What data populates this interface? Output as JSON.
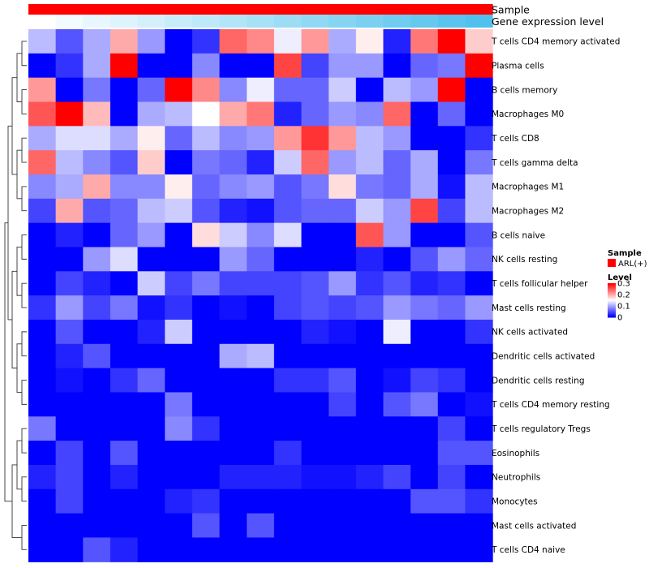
{
  "chart_data": {
    "type": "heatmap",
    "annotations": {
      "sample_label": "Sample",
      "gene_label": "Gene expression level",
      "sample_color": "#ff0000",
      "gene_colors": [
        "#ffffff",
        "#f2fbfe",
        "#e8f7fd",
        "#def4fc",
        "#d3f0fb",
        "#c8edfa",
        "#bde9f8",
        "#b2e5f7",
        "#a7e1f6",
        "#9cdcf5",
        "#91d8f4",
        "#86d4f2",
        "#7bd0f1",
        "#70ccf0",
        "#65c8ef",
        "#5ac4ee",
        "#50c1ed",
        "#4fc1ed"
      ]
    },
    "rows": [
      "T cells CD4 memory activated",
      "Plasma cells",
      "B cells memory",
      "Macrophages M0",
      "T cells CD8",
      "T cells gamma delta",
      "Macrophages M1",
      "Macrophages M2",
      "B cells naive",
      "NK cells resting",
      "T cells follicular helper",
      "Mast cells resting",
      "NK cells activated",
      "Dendritic cells activated",
      "Dendritic cells resting",
      "T cells CD4 memory resting",
      "T cells regulatory  Tregs",
      "Eosinophils",
      "Neutrophils",
      "Monocytes",
      "Mast cells activated",
      "T cells CD4 naive"
    ],
    "values": [
      [
        0.11,
        0.05,
        0.1,
        0.2,
        0.09,
        0.0,
        0.03,
        0.24,
        0.22,
        0.14,
        0.21,
        0.1,
        0.16,
        0.02,
        0.23,
        0.3,
        0.18
      ],
      [
        0.0,
        0.03,
        0.1,
        0.3,
        0.0,
        0.0,
        0.08,
        0.0,
        0.0,
        0.26,
        0.04,
        0.09,
        0.09,
        0.0,
        0.06,
        0.07,
        0.3
      ],
      [
        0.21,
        0.0,
        0.07,
        0.0,
        0.06,
        0.3,
        0.22,
        0.08,
        0.14,
        0.06,
        0.06,
        0.12,
        0.0,
        0.11,
        0.09,
        0.3,
        0.0
      ],
      [
        0.25,
        0.3,
        0.19,
        0.0,
        0.1,
        0.11,
        0.15,
        0.2,
        0.23,
        0.02,
        0.06,
        0.09,
        0.08,
        0.24,
        0.0,
        0.06,
        0.0
      ],
      [
        0.1,
        0.13,
        0.13,
        0.1,
        0.16,
        0.06,
        0.11,
        0.08,
        0.09,
        0.21,
        0.27,
        0.21,
        0.11,
        0.09,
        0.0,
        0.0,
        0.03
      ],
      [
        0.24,
        0.11,
        0.08,
        0.05,
        0.18,
        0.0,
        0.07,
        0.06,
        0.02,
        0.12,
        0.24,
        0.09,
        0.11,
        0.06,
        0.1,
        0.0,
        0.07
      ],
      [
        0.08,
        0.1,
        0.2,
        0.08,
        0.08,
        0.16,
        0.06,
        0.08,
        0.09,
        0.05,
        0.07,
        0.17,
        0.07,
        0.06,
        0.1,
        0.01,
        0.11
      ],
      [
        0.04,
        0.2,
        0.05,
        0.06,
        0.11,
        0.12,
        0.05,
        0.02,
        0.01,
        0.05,
        0.06,
        0.06,
        0.12,
        0.09,
        0.26,
        0.04,
        0.11
      ],
      [
        0.0,
        0.02,
        0.0,
        0.06,
        0.09,
        0.0,
        0.17,
        0.12,
        0.08,
        0.13,
        0.0,
        0.0,
        0.25,
        0.09,
        0.0,
        0.0,
        0.05
      ],
      [
        0.0,
        0.0,
        0.09,
        0.13,
        0.0,
        0.0,
        0.0,
        0.09,
        0.06,
        0.0,
        0.0,
        0.0,
        0.02,
        0.0,
        0.05,
        0.09,
        0.06
      ],
      [
        0.0,
        0.04,
        0.02,
        0.0,
        0.12,
        0.04,
        0.07,
        0.04,
        0.04,
        0.04,
        0.05,
        0.09,
        0.03,
        0.05,
        0.02,
        0.03,
        0.0
      ],
      [
        0.03,
        0.09,
        0.04,
        0.07,
        0.01,
        0.03,
        0.0,
        0.01,
        0.0,
        0.04,
        0.05,
        0.04,
        0.05,
        0.09,
        0.07,
        0.06,
        0.09
      ],
      [
        0.0,
        0.05,
        0.0,
        0.0,
        0.02,
        0.12,
        0.0,
        0.0,
        0.0,
        0.0,
        0.02,
        0.01,
        0.0,
        0.14,
        0.0,
        0.0,
        0.03
      ],
      [
        0.0,
        0.02,
        0.05,
        0.0,
        0.0,
        0.0,
        0.0,
        0.1,
        0.11,
        0.0,
        0.0,
        0.0,
        0.0,
        0.0,
        0.0,
        0.0,
        0.0
      ],
      [
        0.0,
        0.01,
        0.0,
        0.03,
        0.06,
        0.0,
        0.0,
        0.0,
        0.0,
        0.03,
        0.03,
        0.05,
        0.0,
        0.01,
        0.04,
        0.03,
        0.0
      ],
      [
        0.0,
        0.0,
        0.0,
        0.0,
        0.0,
        0.07,
        0.0,
        0.0,
        0.0,
        0.0,
        0.0,
        0.04,
        0.0,
        0.05,
        0.07,
        0.0,
        0.01
      ],
      [
        0.07,
        0.0,
        0.0,
        0.0,
        0.0,
        0.08,
        0.03,
        0.0,
        0.0,
        0.0,
        0.0,
        0.0,
        0.0,
        0.0,
        0.0,
        0.04,
        0.0
      ],
      [
        0.0,
        0.04,
        0.0,
        0.05,
        0.0,
        0.0,
        0.0,
        0.0,
        0.0,
        0.03,
        0.0,
        0.0,
        0.0,
        0.0,
        0.0,
        0.05,
        0.05
      ],
      [
        0.02,
        0.04,
        0.0,
        0.02,
        0.0,
        0.0,
        0.0,
        0.02,
        0.02,
        0.02,
        0.01,
        0.01,
        0.02,
        0.04,
        0.0,
        0.04,
        0.0
      ],
      [
        0.0,
        0.04,
        0.0,
        0.0,
        0.0,
        0.02,
        0.03,
        0.0,
        0.0,
        0.0,
        0.0,
        0.0,
        0.0,
        0.0,
        0.05,
        0.05,
        0.03
      ],
      [
        0.0,
        0.0,
        0.0,
        0.0,
        0.0,
        0.0,
        0.05,
        0.0,
        0.05,
        0.0,
        0.0,
        0.0,
        0.0,
        0.0,
        0.0,
        0.0,
        0.0
      ],
      [
        0.0,
        0.0,
        0.05,
        0.02,
        0.0,
        0.0,
        0.0,
        0.0,
        0.0,
        0.0,
        0.0,
        0.0,
        0.0,
        0.0,
        0.0,
        0.0,
        0.0
      ]
    ],
    "color_scale": {
      "min": 0,
      "mid": 0.15,
      "max": 0.3,
      "low_color": "#0000ff",
      "mid_color": "#ffffff",
      "high_color": "#ff0000"
    },
    "legend": {
      "sample_title": "Sample",
      "sample_entry": "ARL(+)",
      "level_title": "Level",
      "level_ticks": [
        {
          "value": 0.3,
          "label": "0.3"
        },
        {
          "value": 0.2,
          "label": "0.2"
        },
        {
          "value": 0.1,
          "label": "0.1"
        },
        {
          "value": 0,
          "label": "0"
        }
      ]
    }
  }
}
